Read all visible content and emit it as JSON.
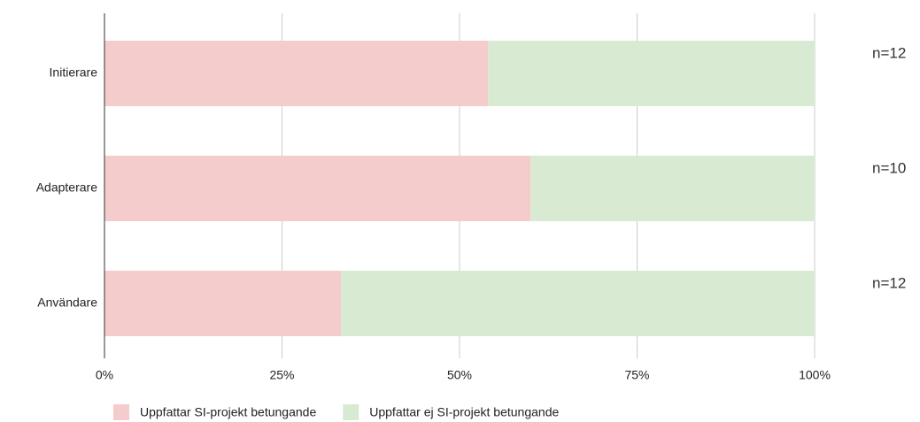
{
  "chart_data": {
    "type": "stacked_bar_horizontal",
    "categories": [
      "Initierare",
      "Adapterare",
      "Användare"
    ],
    "series": [
      {
        "name": "Uppfattar SI-projekt betungande",
        "color": "#f4cccc",
        "values": [
          54,
          60,
          33.3
        ]
      },
      {
        "name": "Uppfattar ej SI-projekt betungande",
        "color": "#d9ead3",
        "values": [
          46,
          40,
          66.7
        ]
      }
    ],
    "xlim": [
      0,
      100
    ],
    "xticks": [
      {
        "value": 0,
        "label": "0%"
      },
      {
        "value": 25,
        "label": "25%"
      },
      {
        "value": 50,
        "label": "50%"
      },
      {
        "value": 75,
        "label": "75%"
      },
      {
        "value": 100,
        "label": "100%"
      }
    ],
    "grid": true,
    "legend": "bottom",
    "annotations": [
      "n=12",
      "n=10",
      "n=12"
    ]
  }
}
